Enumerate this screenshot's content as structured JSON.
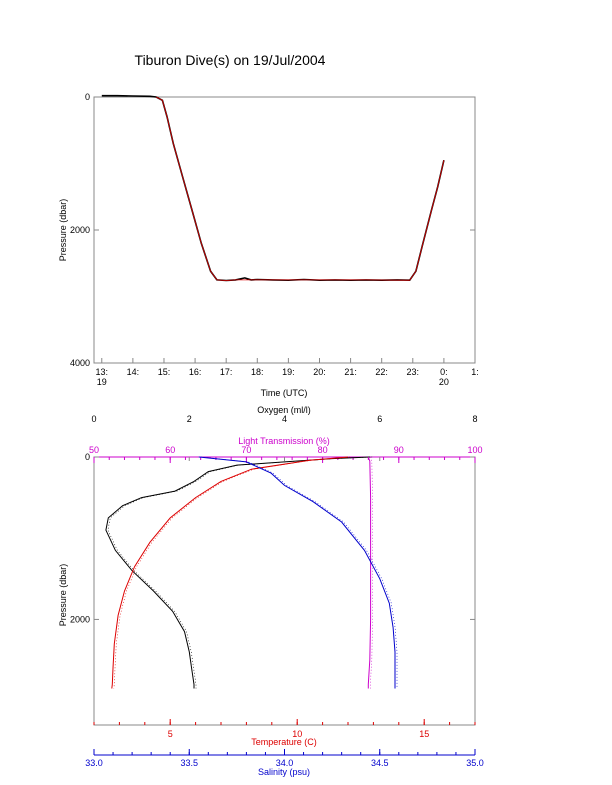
{
  "title": "Tiburon Dive(s) on 19/Jul/2004",
  "chart_data": [
    {
      "type": "line",
      "id": "time-pressure",
      "xlabel": "Time (UTC)",
      "ylabel": "Pressure (dbar)",
      "x_unit": "hours UTC",
      "xlim": [
        12.75,
        25.0
      ],
      "ylim": [
        4000,
        0
      ],
      "xticks": [
        {
          "value": 13,
          "label": "13:",
          "sub": "19"
        },
        {
          "value": 14,
          "label": "14:",
          "sub": ""
        },
        {
          "value": 15,
          "label": "15:",
          "sub": ""
        },
        {
          "value": 16,
          "label": "16:",
          "sub": ""
        },
        {
          "value": 17,
          "label": "17:",
          "sub": ""
        },
        {
          "value": 18,
          "label": "18:",
          "sub": ""
        },
        {
          "value": 19,
          "label": "19:",
          "sub": ""
        },
        {
          "value": 20,
          "label": "20:",
          "sub": ""
        },
        {
          "value": 21,
          "label": "21:",
          "sub": ""
        },
        {
          "value": 22,
          "label": "22:",
          "sub": ""
        },
        {
          "value": 23,
          "label": "23:",
          "sub": ""
        },
        {
          "value": 24,
          "label": "0:",
          "sub": "20"
        },
        {
          "value": 25,
          "label": "1:",
          "sub": ""
        }
      ],
      "yticks": [
        0,
        2000,
        4000
      ],
      "series": [
        {
          "color": "#000000",
          "points": [
            [
              13.0,
              -20
            ],
            [
              13.5,
              -20
            ],
            [
              14.0,
              -15
            ],
            [
              14.55,
              -10
            ],
            [
              14.75,
              0
            ],
            [
              14.95,
              50
            ],
            [
              15.1,
              300
            ],
            [
              15.3,
              700
            ],
            [
              15.6,
              1200
            ],
            [
              15.9,
              1700
            ],
            [
              16.2,
              2200
            ],
            [
              16.5,
              2620
            ],
            [
              16.7,
              2750
            ],
            [
              17.0,
              2760
            ],
            [
              17.3,
              2750
            ],
            [
              17.6,
              2720
            ],
            [
              17.8,
              2750
            ],
            [
              18.0,
              2745
            ],
            [
              18.5,
              2750
            ],
            [
              19.0,
              2755
            ],
            [
              19.5,
              2745
            ],
            [
              20.0,
              2755
            ],
            [
              20.5,
              2750
            ],
            [
              21.0,
              2755
            ],
            [
              21.5,
              2750
            ],
            [
              22.0,
              2755
            ],
            [
              22.5,
              2750
            ],
            [
              22.9,
              2755
            ],
            [
              23.1,
              2620
            ],
            [
              23.3,
              2250
            ],
            [
              23.6,
              1700
            ],
            [
              23.8,
              1350
            ],
            [
              24.0,
              950
            ]
          ]
        },
        {
          "color": "#dd0000",
          "points": [
            [
              14.75,
              0
            ],
            [
              14.95,
              50
            ],
            [
              15.1,
              300
            ],
            [
              15.3,
              700
            ],
            [
              15.6,
              1200
            ],
            [
              15.9,
              1700
            ],
            [
              16.2,
              2200
            ],
            [
              16.5,
              2620
            ],
            [
              16.7,
              2750
            ],
            [
              17.0,
              2760
            ],
            [
              17.3,
              2750
            ],
            [
              17.8,
              2750
            ],
            [
              18.5,
              2750
            ],
            [
              19.5,
              2750
            ],
            [
              20.5,
              2750
            ],
            [
              21.5,
              2750
            ],
            [
              22.9,
              2755
            ],
            [
              23.1,
              2620
            ],
            [
              23.3,
              2250
            ],
            [
              23.6,
              1700
            ],
            [
              23.8,
              1350
            ],
            [
              24.0,
              950
            ]
          ]
        }
      ]
    },
    {
      "type": "line",
      "id": "profile",
      "ylabel": "Pressure (dbar)",
      "ylim": [
        3300,
        0
      ],
      "yticks": [
        0,
        2000
      ],
      "axes": {
        "oxygen": {
          "label": "Oxygen (ml/l)",
          "range": [
            0,
            8
          ],
          "ticks": [
            0,
            2,
            4,
            6,
            8
          ],
          "color": "#000000",
          "position": "top"
        },
        "transmission": {
          "label": "Light Transmission (%)",
          "range": [
            50,
            100
          ],
          "ticks": [
            50,
            60,
            70,
            80,
            90,
            100
          ],
          "color": "#cc00cc",
          "position": "top"
        },
        "temperature": {
          "label": "Temperature (C)",
          "range": [
            2,
            17
          ],
          "ticks": [
            5,
            10,
            15
          ],
          "color": "#dd0000",
          "position": "bottom"
        },
        "salinity": {
          "label": "Salinity (psu)",
          "range": [
            33.0,
            35.0
          ],
          "ticks": [
            "33.0",
            "33.5",
            "34.0",
            "34.5",
            "35.0"
          ],
          "color": "#0000cc",
          "position": "bottom"
        }
      },
      "series": [
        {
          "name": "Oxygen (ml/l)",
          "axis": "oxygen",
          "color": "#000000",
          "points": [
            [
              5.8,
              0
            ],
            [
              5.0,
              20
            ],
            [
              4.0,
              60
            ],
            [
              3.0,
              100
            ],
            [
              2.4,
              180
            ],
            [
              2.1,
              300
            ],
            [
              1.7,
              420
            ],
            [
              1.0,
              500
            ],
            [
              0.6,
              600
            ],
            [
              0.3,
              750
            ],
            [
              0.25,
              900
            ],
            [
              0.45,
              1150
            ],
            [
              0.8,
              1400
            ],
            [
              1.25,
              1650
            ],
            [
              1.65,
              1900
            ],
            [
              1.9,
              2150
            ],
            [
              2.0,
              2400
            ],
            [
              2.05,
              2600
            ],
            [
              2.1,
              2800
            ],
            [
              2.1,
              2850
            ]
          ]
        },
        {
          "name": "Light Transmission (%)",
          "axis": "transmission",
          "color": "#cc00cc",
          "points": [
            [
              86,
              0
            ],
            [
              86.2,
              50
            ],
            [
              86.3,
              500
            ],
            [
              86.3,
              1000
            ],
            [
              86.3,
              1500
            ],
            [
              86.3,
              2000
            ],
            [
              86.2,
              2500
            ],
            [
              86.0,
              2800
            ],
            [
              86.0,
              2850
            ]
          ]
        },
        {
          "name": "Temperature (C)",
          "axis": "temperature",
          "color": "#dd0000",
          "points": [
            [
              12.0,
              0
            ],
            [
              10.5,
              40
            ],
            [
              8.2,
              150
            ],
            [
              7.0,
              300
            ],
            [
              6.0,
              500
            ],
            [
              5.0,
              750
            ],
            [
              4.2,
              1050
            ],
            [
              3.6,
              1350
            ],
            [
              3.2,
              1650
            ],
            [
              2.95,
              1950
            ],
            [
              2.8,
              2300
            ],
            [
              2.75,
              2600
            ],
            [
              2.72,
              2800
            ],
            [
              2.7,
              2850
            ]
          ]
        },
        {
          "name": "Salinity (psu)",
          "axis": "salinity",
          "color": "#0000cc",
          "points": [
            [
              33.55,
              0
            ],
            [
              33.8,
              60
            ],
            [
              33.93,
              200
            ],
            [
              34.0,
              350
            ],
            [
              34.15,
              550
            ],
            [
              34.3,
              800
            ],
            [
              34.42,
              1150
            ],
            [
              34.5,
              1500
            ],
            [
              34.55,
              1800
            ],
            [
              34.57,
              2100
            ],
            [
              34.58,
              2400
            ],
            [
              34.58,
              2700
            ],
            [
              34.58,
              2850
            ]
          ]
        }
      ]
    }
  ]
}
